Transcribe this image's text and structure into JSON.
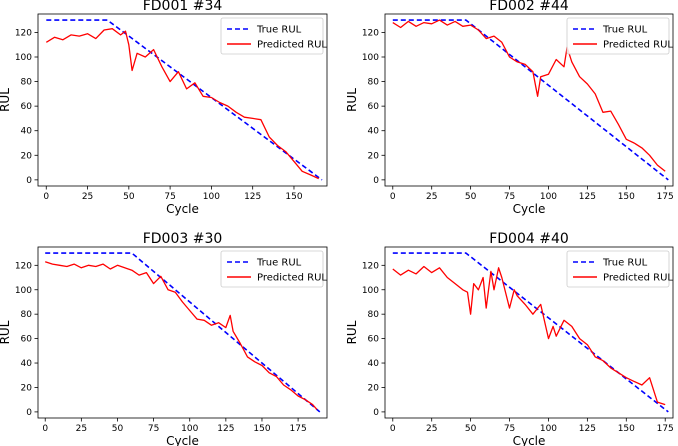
{
  "chart_data": [
    {
      "type": "line",
      "title": "FD001 #34",
      "xlabel": "Cycle",
      "ylabel": "RUL",
      "xlim": [
        -5,
        170
      ],
      "ylim": [
        -5,
        135
      ],
      "xticks": [
        0,
        25,
        50,
        75,
        100,
        125,
        150
      ],
      "yticks": [
        0,
        20,
        40,
        60,
        80,
        100,
        120
      ],
      "legend": "top-right",
      "series": [
        {
          "name": "True RUL",
          "style": "dashed",
          "color": "#0000ff",
          "x": [
            0,
            37,
            167
          ],
          "y": [
            130,
            130,
            0
          ]
        },
        {
          "name": "Predicted RUL",
          "style": "solid",
          "color": "#ff0000",
          "x": [
            0,
            5,
            10,
            15,
            20,
            25,
            30,
            35,
            40,
            45,
            48,
            50,
            52,
            55,
            60,
            65,
            70,
            75,
            80,
            85,
            90,
            95,
            100,
            105,
            110,
            115,
            120,
            125,
            130,
            135,
            140,
            145,
            150,
            155,
            160,
            165
          ],
          "y": [
            112,
            116,
            114,
            118,
            117,
            119,
            115,
            122,
            123,
            118,
            121,
            110,
            89,
            103,
            100,
            106,
            92,
            80,
            88,
            74,
            79,
            68,
            67,
            63,
            60,
            55,
            51,
            50,
            49,
            35,
            28,
            23,
            15,
            7,
            4,
            1
          ]
        }
      ]
    },
    {
      "type": "line",
      "title": "FD002 #44",
      "xlabel": "Cycle",
      "ylabel": "RUL",
      "xlim": [
        -5,
        180
      ],
      "ylim": [
        -5,
        135
      ],
      "xticks": [
        0,
        25,
        50,
        75,
        100,
        125,
        150,
        175
      ],
      "yticks": [
        0,
        20,
        40,
        60,
        80,
        100,
        120
      ],
      "legend": "top-right",
      "series": [
        {
          "name": "True RUL",
          "style": "dashed",
          "color": "#0000ff",
          "x": [
            0,
            47,
            177
          ],
          "y": [
            130,
            130,
            0
          ]
        },
        {
          "name": "Predicted RUL",
          "style": "solid",
          "color": "#ff0000",
          "x": [
            0,
            5,
            10,
            15,
            20,
            25,
            30,
            35,
            40,
            45,
            50,
            55,
            60,
            65,
            70,
            75,
            80,
            85,
            90,
            93,
            95,
            100,
            105,
            110,
            112,
            115,
            120,
            125,
            130,
            135,
            140,
            145,
            150,
            155,
            160,
            165,
            170,
            175
          ],
          "y": [
            128,
            124,
            129,
            125,
            128,
            127,
            130,
            126,
            129,
            125,
            126,
            122,
            115,
            117,
            112,
            100,
            96,
            94,
            88,
            68,
            84,
            86,
            98,
            92,
            108,
            96,
            84,
            78,
            70,
            55,
            56,
            45,
            33,
            30,
            26,
            20,
            12,
            7
          ]
        }
      ]
    },
    {
      "type": "line",
      "title": "FD003 #30",
      "xlabel": "Cycle",
      "ylabel": "RUL",
      "xlim": [
        -5,
        195
      ],
      "ylim": [
        -5,
        135
      ],
      "xticks": [
        0,
        25,
        50,
        75,
        100,
        125,
        150,
        175
      ],
      "yticks": [
        0,
        20,
        40,
        60,
        80,
        100,
        120
      ],
      "legend": "top-right",
      "series": [
        {
          "name": "True RUL",
          "style": "dashed",
          "color": "#0000ff",
          "x": [
            0,
            60,
            190
          ],
          "y": [
            130,
            130,
            0
          ]
        },
        {
          "name": "Predicted RUL",
          "style": "solid",
          "color": "#ff0000",
          "x": [
            0,
            5,
            10,
            15,
            20,
            25,
            30,
            35,
            40,
            45,
            50,
            55,
            60,
            65,
            70,
            75,
            80,
            85,
            90,
            95,
            100,
            105,
            110,
            115,
            120,
            125,
            128,
            130,
            135,
            140,
            145,
            150,
            155,
            160,
            165,
            170,
            175,
            180,
            185,
            188
          ],
          "y": [
            123,
            121,
            120,
            119,
            121,
            118,
            120,
            119,
            121,
            117,
            120,
            118,
            116,
            112,
            114,
            105,
            111,
            100,
            98,
            90,
            83,
            76,
            75,
            71,
            73,
            69,
            79,
            66,
            56,
            45,
            41,
            38,
            32,
            29,
            22,
            18,
            13,
            10,
            6,
            2
          ]
        }
      ]
    },
    {
      "type": "line",
      "title": "FD004 #40",
      "xlabel": "Cycle",
      "ylabel": "RUL",
      "xlim": [
        -5,
        180
      ],
      "ylim": [
        -5,
        135
      ],
      "xticks": [
        0,
        25,
        50,
        75,
        100,
        125,
        150,
        175
      ],
      "yticks": [
        0,
        20,
        40,
        60,
        80,
        100,
        120
      ],
      "legend": "top-right",
      "series": [
        {
          "name": "True RUL",
          "style": "dashed",
          "color": "#0000ff",
          "x": [
            0,
            47,
            177
          ],
          "y": [
            130,
            130,
            0
          ]
        },
        {
          "name": "Predicted RUL",
          "style": "solid",
          "color": "#ff0000",
          "x": [
            0,
            5,
            10,
            15,
            20,
            25,
            30,
            35,
            40,
            45,
            48,
            50,
            52,
            55,
            58,
            60,
            63,
            65,
            68,
            70,
            75,
            78,
            80,
            85,
            90,
            95,
            100,
            103,
            105,
            110,
            115,
            120,
            125,
            130,
            135,
            140,
            145,
            150,
            155,
            160,
            165,
            170,
            175
          ],
          "y": [
            117,
            112,
            116,
            113,
            119,
            114,
            118,
            110,
            105,
            100,
            98,
            80,
            105,
            100,
            110,
            85,
            115,
            100,
            118,
            110,
            85,
            100,
            95,
            88,
            80,
            88,
            60,
            70,
            62,
            75,
            70,
            60,
            55,
            45,
            42,
            36,
            32,
            28,
            25,
            22,
            28,
            8,
            6
          ]
        }
      ]
    }
  ]
}
